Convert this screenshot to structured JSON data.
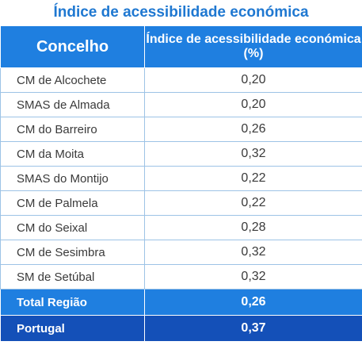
{
  "title": "Índice de acessibilidade económica",
  "table": {
    "headers": [
      "Concelho",
      "Índice de acessibilidade económica (%)"
    ],
    "rows": [
      {
        "name": "CM de Alcochete",
        "value": "0,20"
      },
      {
        "name": "SMAS de Almada",
        "value": "0,20"
      },
      {
        "name": "CM do Barreiro",
        "value": "0,26"
      },
      {
        "name": "CM da Moita",
        "value": "0,32"
      },
      {
        "name": "SMAS do Montijo",
        "value": "0,22"
      },
      {
        "name": "CM de Palmela",
        "value": "0,22"
      },
      {
        "name": "CM do Seixal",
        "value": "0,28"
      },
      {
        "name": "CM de Sesimbra",
        "value": "0,32"
      },
      {
        "name": "SM de Setúbal",
        "value": "0,32"
      }
    ],
    "total": {
      "name": "Total Região",
      "value": "0,26"
    },
    "portugal": {
      "name": "Portugal",
      "value": "0,37"
    }
  },
  "colors": {
    "title": "#1f78d1",
    "header_bg": "#1f7fe0",
    "total_bg": "#1f7fe0",
    "portugal_bg": "#1450b8",
    "grid": "#9dc3e6"
  }
}
